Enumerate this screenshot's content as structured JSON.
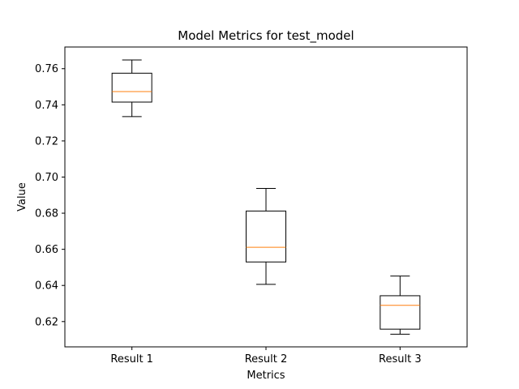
{
  "chart_data": {
    "type": "boxplot",
    "title": "Model Metrics for test_model",
    "xlabel": "Metrics",
    "ylabel": "Value",
    "categories": [
      "Result 1",
      "Result 2",
      "Result 3"
    ],
    "ylim": [
      0.606,
      0.772
    ],
    "yticks": [
      0.62,
      0.64,
      0.66,
      0.68,
      0.7,
      0.72,
      0.74,
      0.76
    ],
    "ytick_labels": [
      "0.62",
      "0.64",
      "0.66",
      "0.68",
      "0.70",
      "0.72",
      "0.74",
      "0.76"
    ],
    "boxes": [
      {
        "category": "Result 1",
        "whisker_low": 0.7335,
        "q1": 0.7415,
        "median": 0.7473,
        "q3": 0.7575,
        "whisker_high": 0.7648
      },
      {
        "category": "Result 2",
        "whisker_low": 0.6406,
        "q1": 0.653,
        "median": 0.6611,
        "q3": 0.6812,
        "whisker_high": 0.6937
      },
      {
        "category": "Result 3",
        "whisker_low": 0.613,
        "q1": 0.6158,
        "median": 0.629,
        "q3": 0.6343,
        "whisker_high": 0.6452
      }
    ],
    "grid": false,
    "box_color": "#000000",
    "median_color": "#ff7f0e"
  }
}
